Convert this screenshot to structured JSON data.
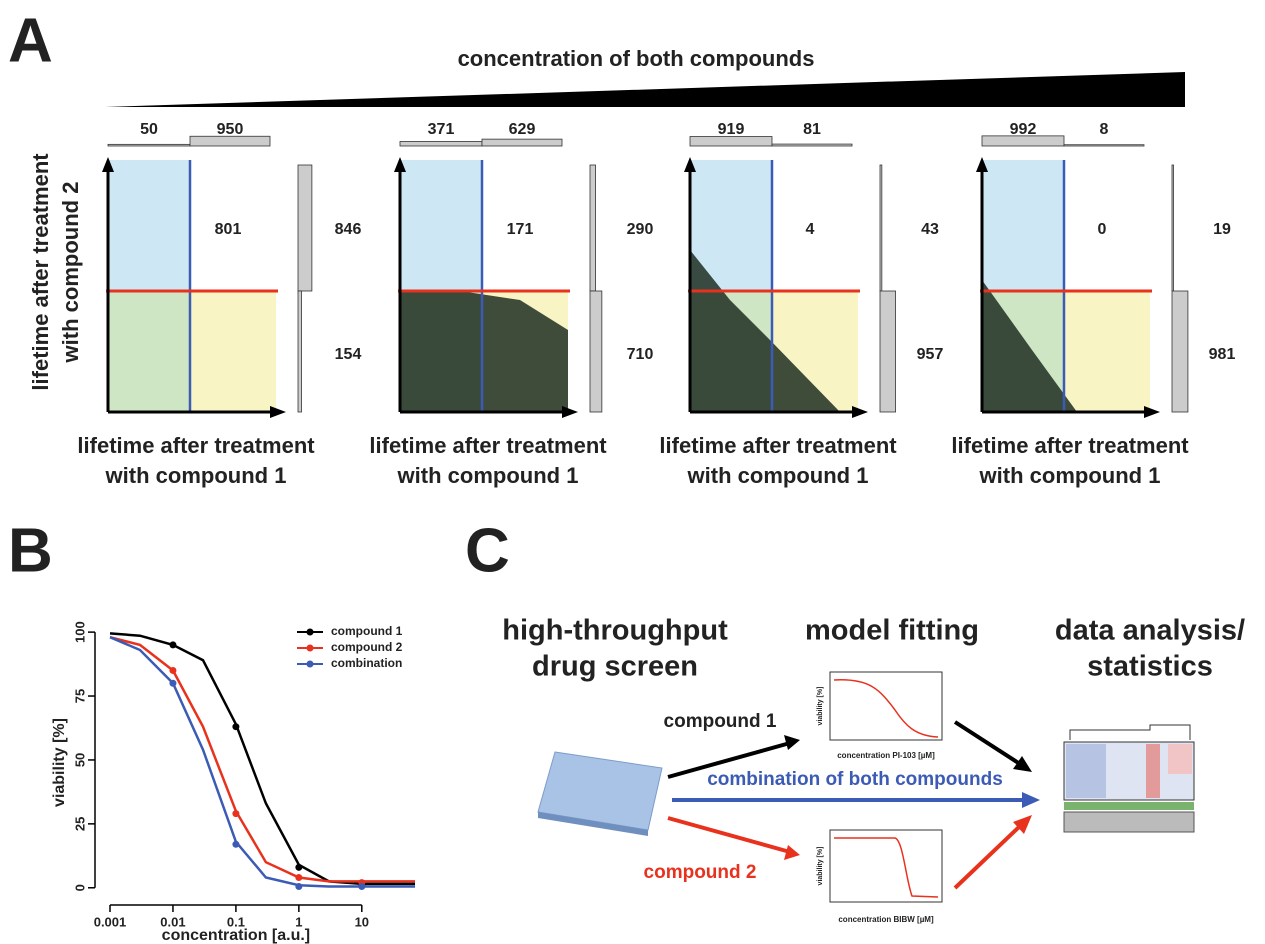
{
  "panel_a": {
    "label": "A",
    "title": "concentration of both compounds",
    "y_label": [
      "lifetime after treatment",
      "with compound 2"
    ],
    "panels": [
      {
        "top_counts": [
          50,
          950
        ],
        "right_counts": [
          846,
          154
        ],
        "quadrant_count": 801,
        "x_label": [
          "lifetime after treatment",
          "with compound 1"
        ]
      },
      {
        "top_counts": [
          371,
          629
        ],
        "right_counts": [
          290,
          710
        ],
        "quadrant_count": 171,
        "x_label": [
          "lifetime after treatment",
          "with compound 1"
        ]
      },
      {
        "top_counts": [
          919,
          81
        ],
        "right_counts": [
          43,
          957
        ],
        "quadrant_count": 4,
        "x_label": [
          "lifetime after treatment",
          "with compound 1"
        ]
      },
      {
        "top_counts": [
          992,
          8
        ],
        "right_counts": [
          19,
          981
        ],
        "quadrant_count": 0,
        "x_label": [
          "lifetime after treatment",
          "with compound 1"
        ]
      }
    ]
  },
  "panel_b_label": "B",
  "chart_data": {
    "type": "line",
    "x_label": "concentration [a.u.]",
    "y_label": "viability [%]",
    "log_x": true,
    "xlim": [
      0.001,
      70
    ],
    "ylim": [
      -4,
      102
    ],
    "xticks": [
      0.001,
      0.01,
      0.1,
      1,
      10
    ],
    "yticks": [
      0,
      25,
      50,
      75,
      100
    ],
    "legend": "top-right",
    "series": [
      {
        "name": "compound 1",
        "color": "#000000",
        "x": [
          0.01,
          0.1,
          1,
          10
        ],
        "values": [
          95,
          63,
          8,
          1
        ],
        "curve_x": [
          0.001,
          0.003,
          0.01,
          0.03,
          0.1,
          0.3,
          1,
          3,
          10,
          70
        ],
        "curve_values": [
          99.5,
          98.6,
          95,
          89,
          64,
          33,
          9,
          2.5,
          1.5,
          1.5
        ]
      },
      {
        "name": "compound 2",
        "color": "#e8321e",
        "x": [
          0.01,
          0.1,
          1,
          10
        ],
        "values": [
          85,
          29,
          4,
          2
        ],
        "curve_x": [
          0.001,
          0.003,
          0.01,
          0.03,
          0.1,
          0.3,
          1,
          3,
          10,
          70
        ],
        "curve_values": [
          98,
          95,
          85,
          63,
          30,
          10,
          4,
          2.5,
          2.5,
          2.5
        ]
      },
      {
        "name": "combination",
        "color": "#3b5bb5",
        "x": [
          0.01,
          0.1,
          1,
          10
        ],
        "values": [
          80,
          17,
          0.5,
          0.5
        ],
        "curve_x": [
          0.001,
          0.003,
          0.01,
          0.03,
          0.1,
          0.3,
          1,
          3,
          10,
          70
        ],
        "curve_values": [
          98,
          93,
          80,
          54,
          18,
          4,
          1,
          0.5,
          0.5,
          0.5
        ]
      }
    ]
  },
  "panel_c": {
    "label": "C",
    "steps": [
      [
        "high-throughput",
        "drug screen"
      ],
      [
        "model fitting"
      ],
      [
        "data analysis/",
        "statistics"
      ]
    ],
    "arrows": [
      "compound 1",
      "combination of both compounds",
      "compound 2"
    ],
    "fits": [
      {
        "y_label": "viability [%]",
        "x_label": "concentration PI-103 [µM]"
      },
      {
        "y_label": "viability [%]",
        "x_label": "concentration BIBW [µM]"
      }
    ]
  }
}
